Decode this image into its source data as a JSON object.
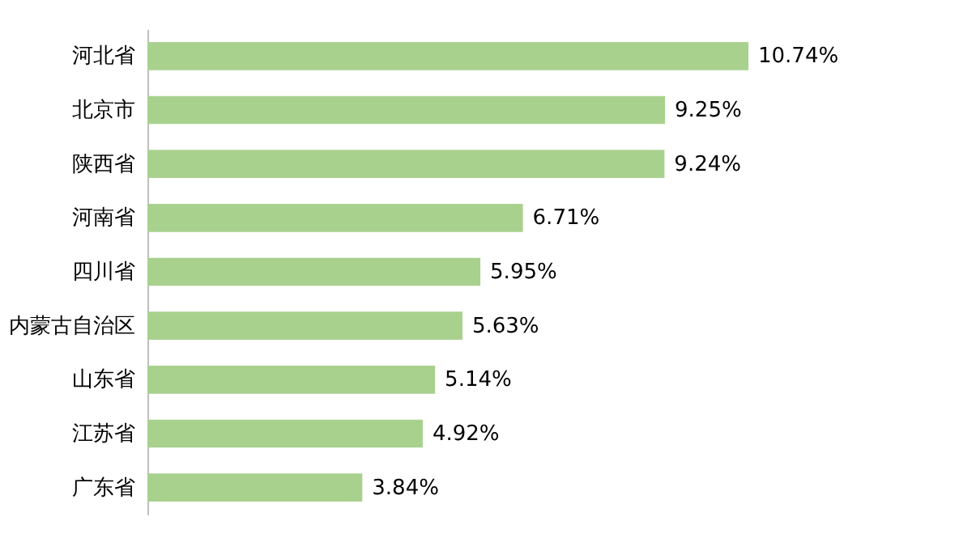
{
  "chart_data": {
    "type": "bar",
    "orientation": "horizontal",
    "categories": [
      "河北省",
      "北京市",
      "陕西省",
      "河南省",
      "四川省",
      "内蒙古自治区",
      "山东省",
      "江苏省",
      "广东省"
    ],
    "values": [
      10.74,
      9.25,
      9.24,
      6.71,
      5.95,
      5.63,
      5.14,
      4.92,
      3.84
    ],
    "value_labels": [
      "10.74%",
      "9.25%",
      "9.24%",
      "6.71%",
      "5.95%",
      "5.63%",
      "5.14%",
      "4.92%",
      "3.84%"
    ],
    "color": "#a9d18e",
    "tick_labels": "y"
  }
}
